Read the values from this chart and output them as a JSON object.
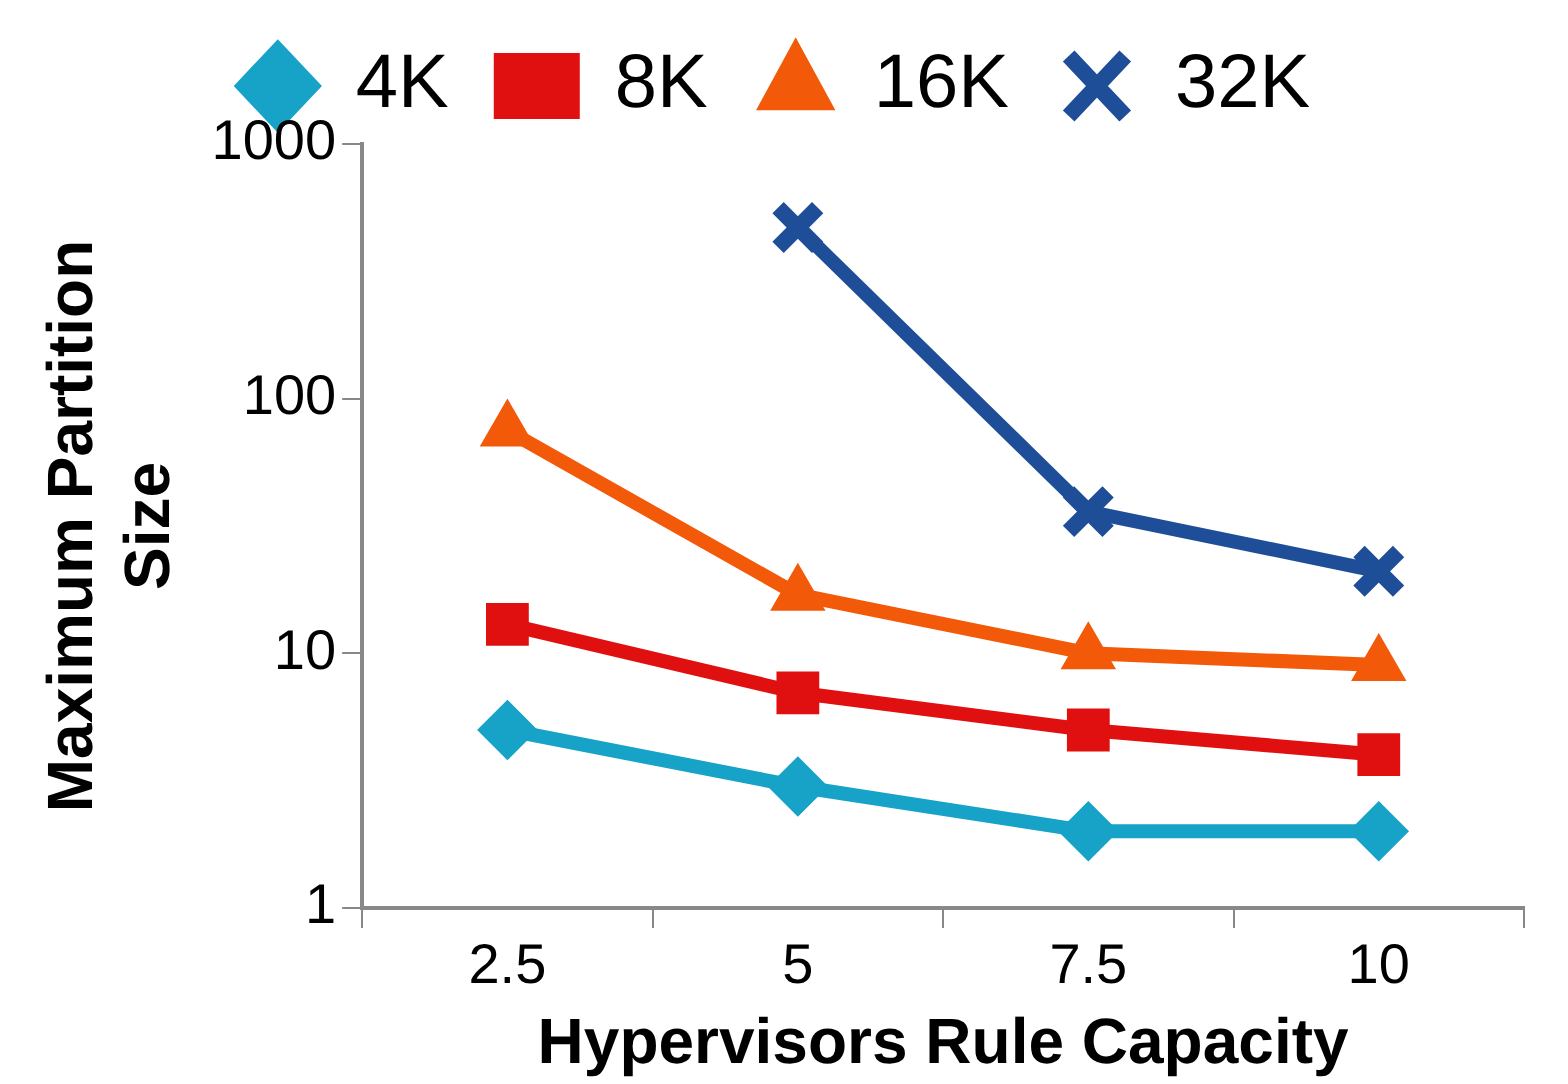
{
  "chart_data": {
    "type": "line",
    "xlabel": "Hypervisors Rule Capacity",
    "ylabel": "Maximum Partition Size",
    "categories": [
      "2.5",
      "5",
      "7.5",
      "10"
    ],
    "log": "y",
    "ylim": [
      1,
      1000
    ],
    "yticks": [
      1,
      10,
      100,
      1000
    ],
    "grid": false,
    "legend": "top",
    "line_style": "solid",
    "series": [
      {
        "name": "4K",
        "color": "#17a2c8",
        "marker": "diamond",
        "values": [
          5,
          3,
          2,
          2
        ]
      },
      {
        "name": "8K",
        "color": "#e01010",
        "marker": "square",
        "values": [
          13,
          7,
          5,
          4
        ]
      },
      {
        "name": "16K",
        "color": "#f25a0a",
        "marker": "triangle",
        "values": [
          75,
          17,
          10,
          9
        ]
      },
      {
        "name": "32K",
        "color": "#1f4e99",
        "marker": "cross",
        "values": [
          null,
          470,
          36,
          21
        ]
      }
    ]
  }
}
